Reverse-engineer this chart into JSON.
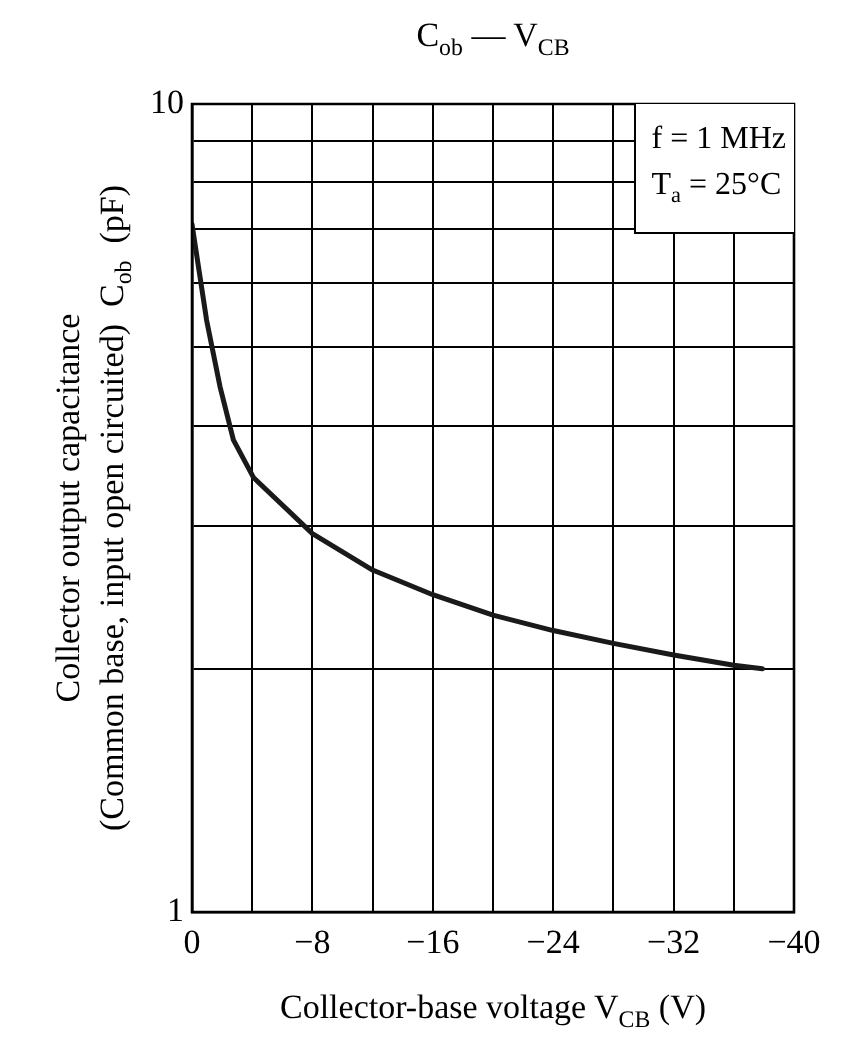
{
  "chart_data": {
    "type": "line",
    "title": "C$_{ob}$ — V$_{CB}$",
    "xlabel": "Collector-base voltage  V$_{CB}$  (V)",
    "ylabel": "Collector output capacitance\n(Common base, input open circuited)  C$_{ob}$  (pF)",
    "annotations": [
      "f = 1 MHz",
      "T$_{a}$ = 25°C"
    ],
    "x": [
      0,
      -0.97,
      -1.86,
      -2.75,
      -4.08,
      -8,
      -12,
      -16,
      -20,
      -24,
      -28,
      -32,
      -36,
      -37.9
    ],
    "series": [
      {
        "color": "#1a1a1a",
        "values": [
          7.1,
          5.4,
          4.47,
          3.84,
          3.45,
          2.94,
          2.65,
          2.47,
          2.33,
          2.23,
          2.15,
          2.08,
          2.02,
          2.0
        ]
      }
    ],
    "xlim": [
      0,
      -40
    ],
    "xticks": [
      0,
      {
        "value": -4,
        "label": null
      },
      {
        "value": -8,
        "label": "−8"
      },
      {
        "value": -12,
        "label": null
      },
      {
        "value": -16,
        "label": "−16"
      },
      {
        "value": -20,
        "label": null
      },
      {
        "value": -24,
        "label": "−24"
      },
      {
        "value": -28,
        "label": null
      },
      {
        "value": -32,
        "label": "−32"
      },
      {
        "value": -36,
        "label": null
      },
      {
        "value": -40,
        "label": "−40"
      }
    ],
    "ylim": [
      1,
      10
    ],
    "yticks": [
      1,
      {
        "value": 2,
        "label": null
      },
      {
        "value": 3,
        "label": null
      },
      {
        "value": 4,
        "label": null
      },
      {
        "value": 5,
        "label": null
      },
      {
        "value": 6,
        "label": null
      },
      {
        "value": 7,
        "label": null
      },
      {
        "value": 8,
        "label": null
      },
      {
        "value": 9,
        "label": null
      },
      10
    ],
    "log": true,
    "grid": true,
    "legend": false,
    "marker": "none",
    "line_style": "solid"
  }
}
